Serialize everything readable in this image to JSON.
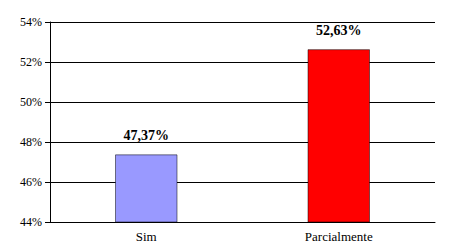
{
  "chart_data": {
    "type": "bar",
    "categories": [
      "Sim",
      "Parcialmente"
    ],
    "values": [
      47.37,
      52.63
    ],
    "value_labels": [
      "47,37%",
      "52,63%"
    ],
    "colors": [
      "#9999ff",
      "#ff0000"
    ],
    "ylim": [
      44,
      54
    ],
    "yticks": [
      {
        "value": 44,
        "label": "44%"
      },
      {
        "value": 46,
        "label": "46%"
      },
      {
        "value": 48,
        "label": "48%"
      },
      {
        "value": 50,
        "label": "50%"
      },
      {
        "value": 52,
        "label": "52%"
      },
      {
        "value": 54,
        "label": "54%"
      }
    ],
    "grid": true,
    "data_labels": true
  }
}
